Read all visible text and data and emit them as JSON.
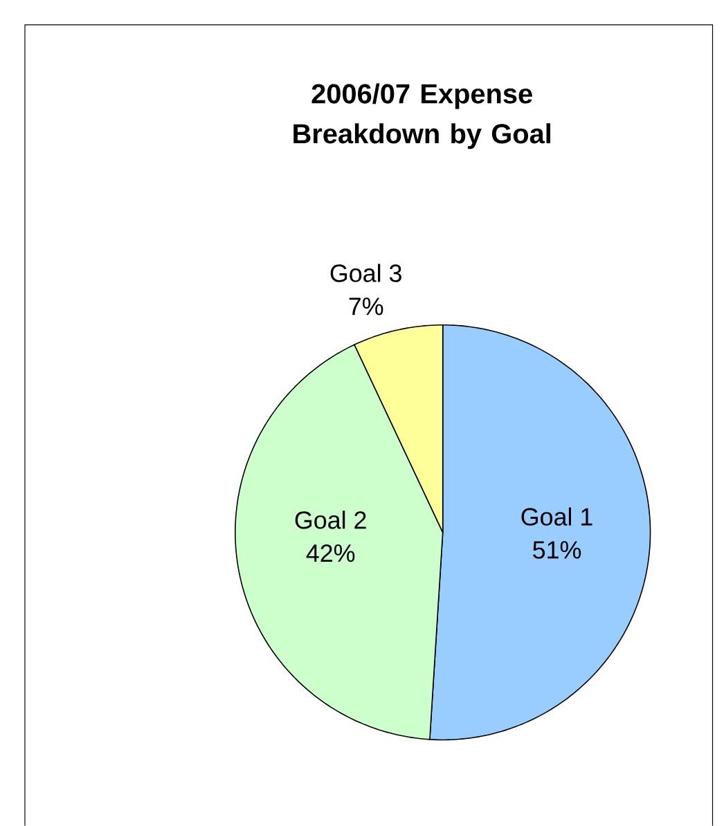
{
  "chart_data": {
    "type": "pie",
    "title": "2006/07 Expense Breakdown by Goal",
    "categories": [
      "Goal 1",
      "Goal 2",
      "Goal 3"
    ],
    "values": [
      51,
      42,
      7
    ],
    "value_labels": [
      "51%",
      "42%",
      "7%"
    ],
    "colors": [
      "#99ccff",
      "#ccffcc",
      "#ffff99"
    ]
  }
}
